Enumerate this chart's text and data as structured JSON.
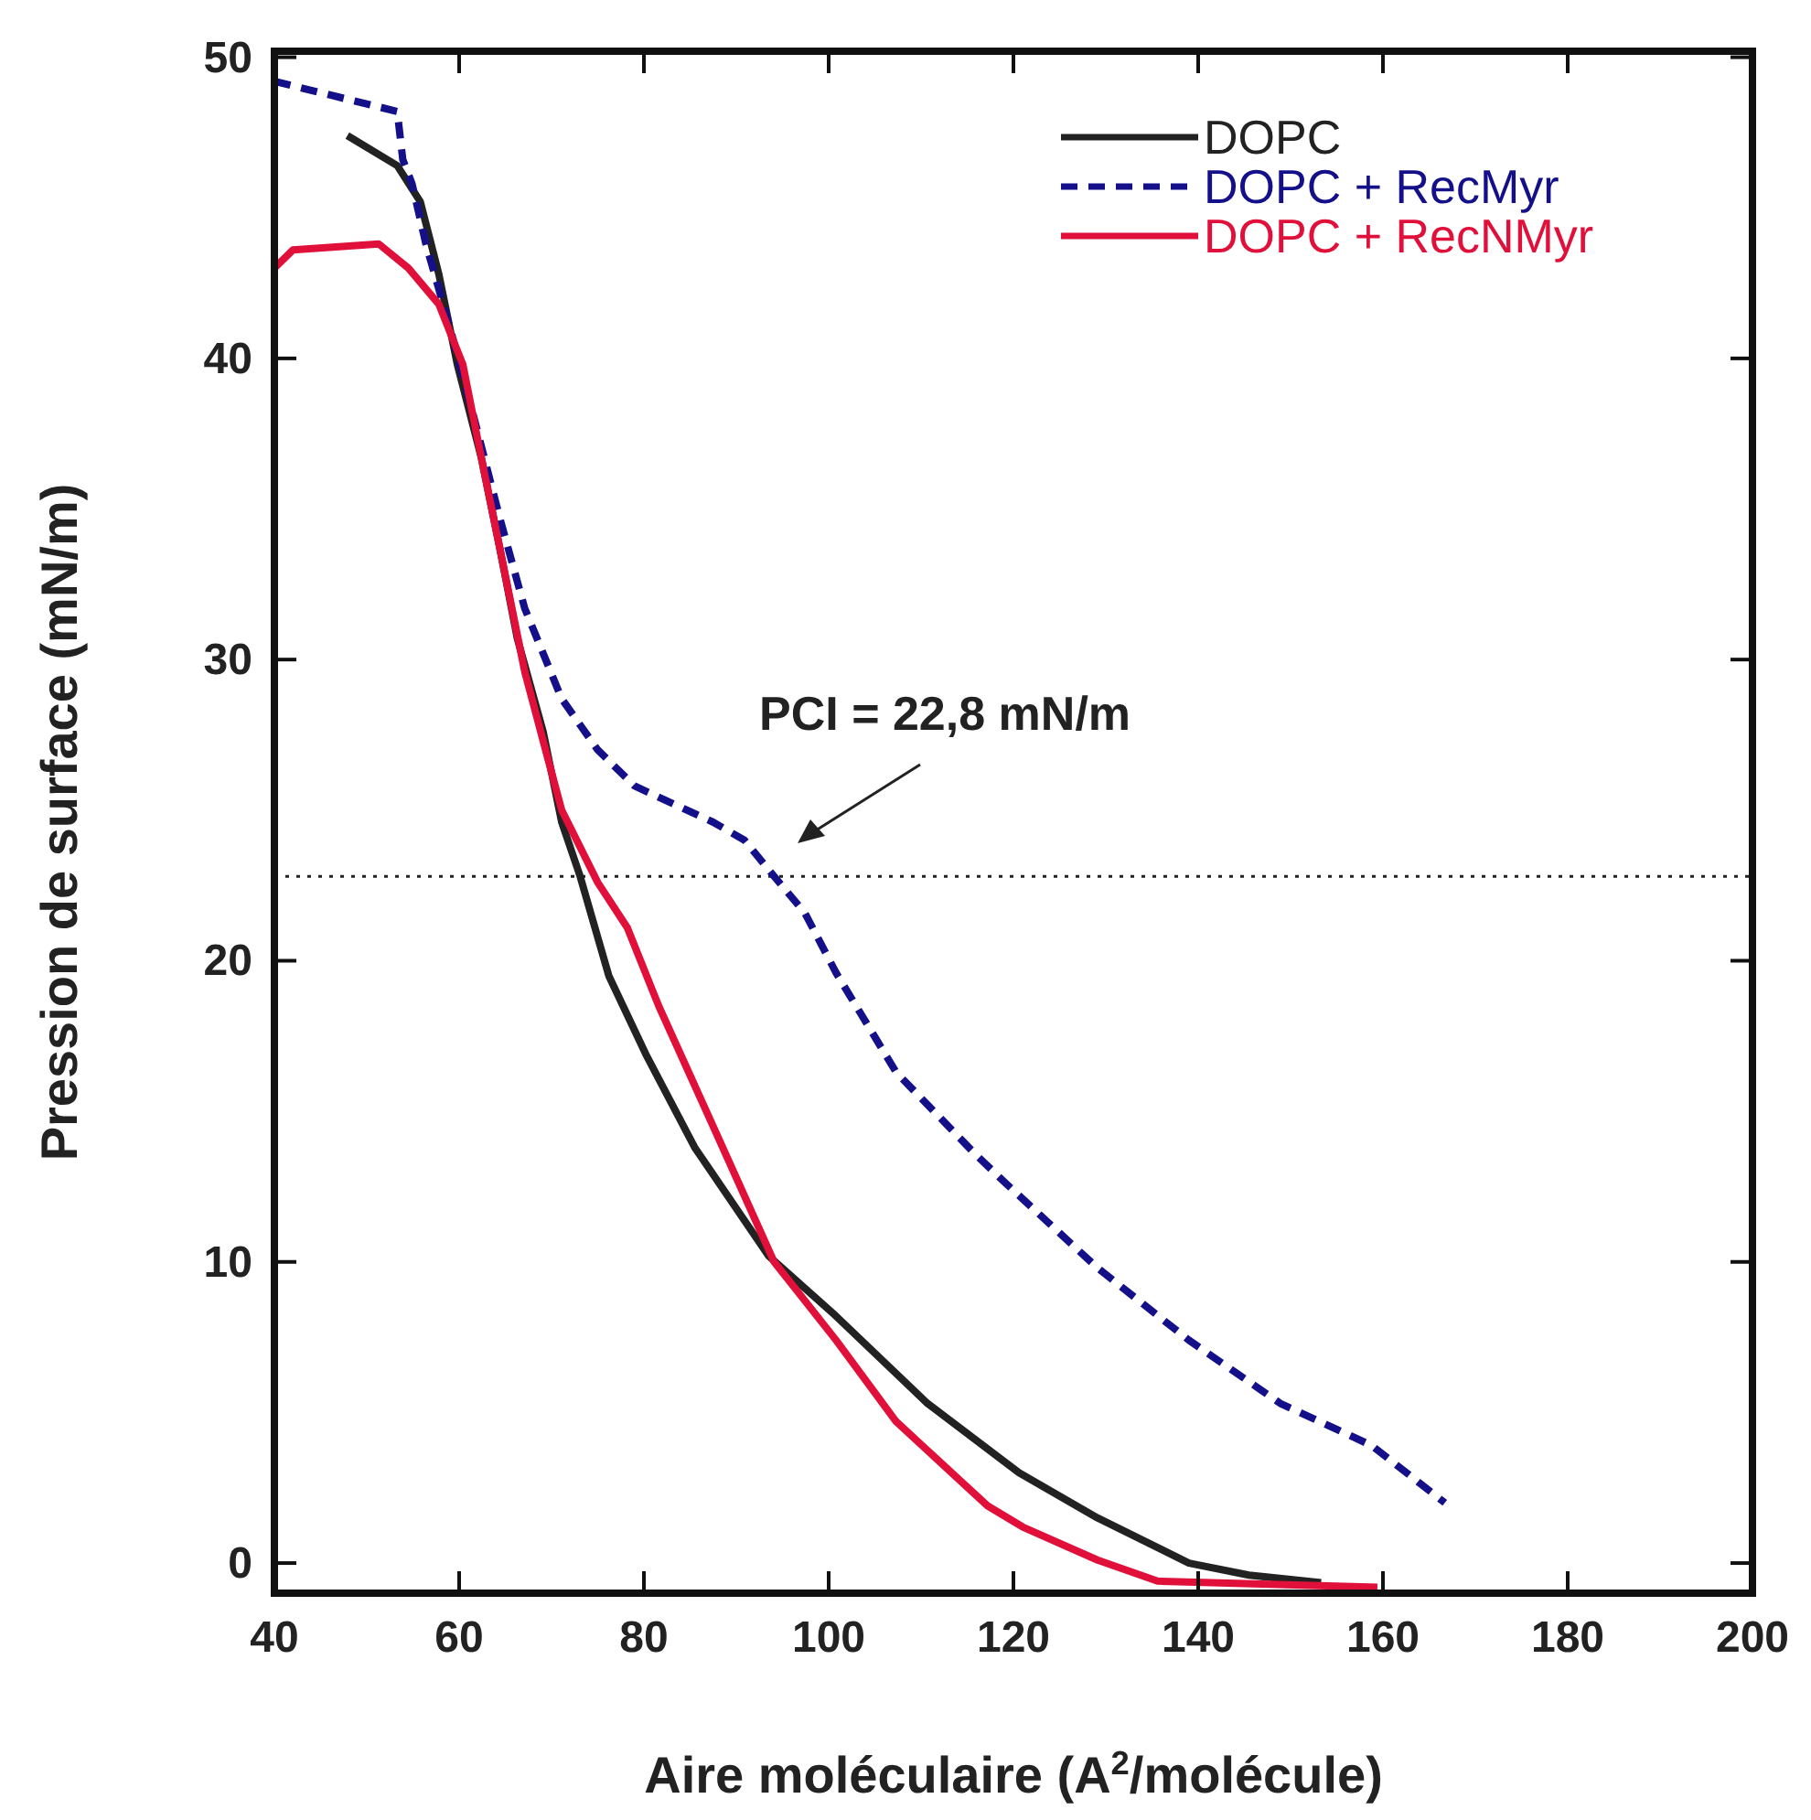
{
  "chart_data": {
    "type": "line",
    "xlabel": "Aire moléculaire (A$^{2}$/molécule)",
    "ylabel": "Pression de surface (mN/m)",
    "xlim": [
      40,
      200
    ],
    "ylim": [
      -1,
      50.2
    ],
    "xticks": [
      40,
      60,
      80,
      100,
      120,
      140,
      160,
      180,
      200
    ],
    "yticks": [
      0,
      10,
      20,
      30,
      40,
      50
    ],
    "legend": "top right",
    "grid": false,
    "series": [
      {
        "name": "DOPC",
        "color": "#222222",
        "line_style": "solid",
        "x": [
          47.9,
          53.3,
          55.8,
          57.8,
          59.8,
          62.4,
          64.4,
          66.3,
          69.1,
          71.1,
          73.1,
          76.2,
          80.2,
          85.5,
          93.5,
          100.8,
          110.7,
          120.6,
          129.1,
          139,
          145.5,
          153.3
        ],
        "values": [
          47.4,
          46.4,
          45.2,
          42.8,
          39.8,
          36.7,
          33.7,
          30.7,
          27.6,
          24.6,
          22.8,
          19.5,
          16.9,
          13.8,
          10.2,
          8.2,
          5.3,
          3.0,
          1.5,
          0,
          -0.4,
          -0.65
        ]
      },
      {
        "name": "DOPC + RecMyr",
        "color": "#13108a",
        "line_style": "dashed",
        "x": [
          40,
          53.3,
          53.9,
          54.9,
          56.4,
          59.2,
          61.8,
          64.4,
          67.1,
          71.1,
          75,
          79,
          87.5,
          90.9,
          94.1,
          97.4,
          100.8,
          107.3,
          115.8,
          119.2,
          129.1,
          139,
          148.9,
          158.8,
          166.7
        ],
        "values": [
          49.2,
          48.2,
          46.6,
          45.8,
          43.8,
          40.8,
          37.8,
          34.7,
          31.7,
          28.7,
          27.0,
          25.8,
          24.6,
          24.0,
          22.8,
          21.6,
          19.6,
          16.3,
          13.6,
          12.6,
          9.8,
          7.4,
          5.3,
          3.9,
          2.0
        ]
      },
      {
        "name": "DOPC + RecNMyr",
        "color": "#e0103a",
        "line_style": "solid",
        "x": [
          40,
          42,
          51.3,
          54.5,
          57.8,
          60.4,
          62.4,
          64.4,
          67.1,
          69.7,
          71.1,
          75,
          78.2,
          81.6,
          87.5,
          94.1,
          100.8,
          107.3,
          117.2,
          121,
          129.1,
          135.6,
          159.4
        ],
        "values": [
          43.0,
          43.6,
          43.8,
          43.0,
          41.8,
          39.8,
          36.7,
          33.7,
          29.6,
          26.6,
          25.0,
          22.6,
          21.1,
          18.5,
          14.5,
          10.0,
          7.4,
          4.7,
          1.9,
          1.2,
          0.1,
          -0.6,
          -0.8
        ]
      }
    ],
    "ref_lines": [
      {
        "axis": "y",
        "value": 22.8,
        "color": "#222222",
        "line_style": "dotted"
      }
    ],
    "annotations": [
      "PCI = 22,8 mN/m"
    ]
  }
}
